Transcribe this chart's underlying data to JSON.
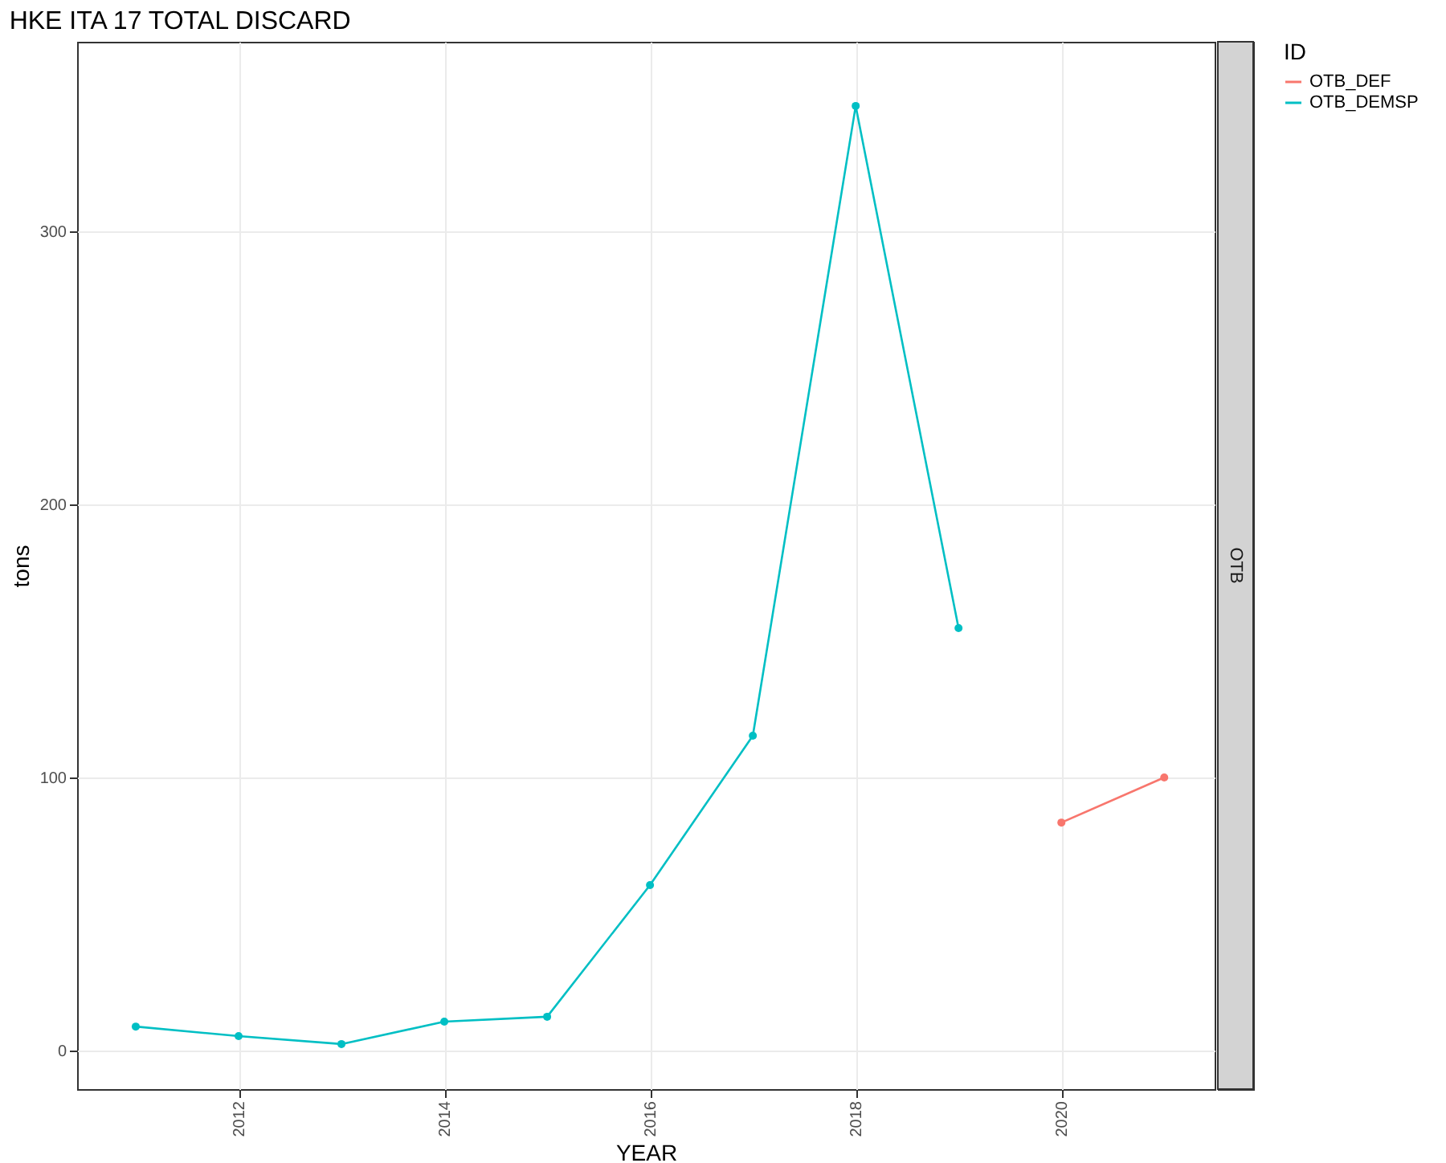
{
  "chart_data": {
    "type": "line",
    "title": "HKE ITA 17 TOTAL DISCARD",
    "xlabel": "YEAR",
    "ylabel": "tons",
    "legend_title": "ID",
    "annotations": [
      "OTB"
    ],
    "series": [
      {
        "name": "OTB_DEF",
        "color": "#f8766d",
        "x": [
          2020,
          2021
        ],
        "values": [
          83.5,
          100
        ]
      },
      {
        "name": "OTB_DEMSP",
        "color": "#00bfc4",
        "x": [
          2011,
          2012,
          2013,
          2014,
          2015,
          2016,
          2017,
          2018,
          2019
        ],
        "values": [
          8.8,
          5.3,
          2.4,
          10.6,
          12.4,
          60.6,
          115.3,
          345.9,
          154.7
        ]
      }
    ],
    "xlim": [
      2010.43,
      2021.49
    ],
    "ylim": [
      -14.1,
      369.4
    ],
    "xticks": [
      2012,
      2014,
      2016,
      2018,
      2020
    ],
    "yticks": [
      0,
      100,
      200,
      300
    ],
    "grid": true,
    "legend": "right",
    "marker": "circle",
    "line_style": "solid"
  }
}
